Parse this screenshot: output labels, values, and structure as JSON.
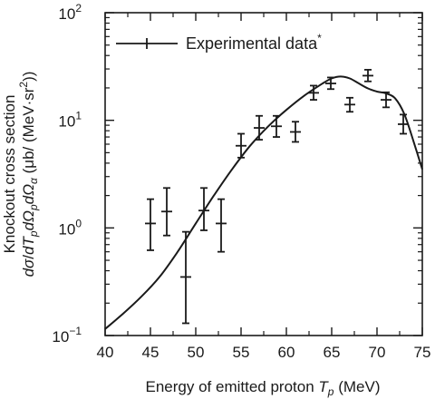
{
  "chart_data": {
    "type": "scatter",
    "title": "",
    "xlabel": "Energy of emitted proton T_p (MeV)",
    "xlabel_parts": {
      "main": "Energy of emitted proton ",
      "var": "T",
      "sub": "p",
      "unit": " (MeV)"
    },
    "ylabel_line1": "Knockout cross section",
    "ylabel_line2": "dσ/dT_p dΩ_p dΩ_α (μb/ (MeV·sr²))",
    "ylabel_line2_parts": {
      "d1": "d",
      "sigma": "σ",
      "slash": "/",
      "d2": "dT",
      "sub_p1": "p",
      "d3": "dΩ",
      "sub_p2": "p",
      "d4": "dΩ",
      "sub_a": "α",
      "unit_open": " (μb/ (MeV·sr",
      "sup2": "2",
      "unit_close": "))"
    },
    "x_range": [
      40,
      75
    ],
    "y_range": [
      0.1,
      100
    ],
    "y_scale": "log",
    "x_ticks": [
      40,
      45,
      50,
      55,
      60,
      65,
      70,
      75
    ],
    "y_ticks": [
      {
        "value": 0.1,
        "base": "10",
        "exp": "−1"
      },
      {
        "value": 1,
        "base": "10",
        "exp": "0"
      },
      {
        "value": 10,
        "base": "10",
        "exp": "1"
      },
      {
        "value": 100,
        "base": "10",
        "exp": "2"
      }
    ],
    "legend": {
      "label": "Experimental data",
      "sup": "*",
      "position": "top-left"
    },
    "series": [
      {
        "name": "Experimental data*",
        "kind": "errorbar",
        "points": [
          {
            "x": 45.0,
            "y": 1.1,
            "ylo": 0.62,
            "yhi": 1.85,
            "xerr": 0.6
          },
          {
            "x": 46.8,
            "y": 1.42,
            "ylo": 0.85,
            "yhi": 2.35,
            "xerr": 0.6
          },
          {
            "x": 48.9,
            "y": 0.35,
            "ylo": 0.13,
            "yhi": 0.92,
            "xerr": 0.6
          },
          {
            "x": 50.9,
            "y": 1.45,
            "ylo": 0.95,
            "yhi": 2.35,
            "xerr": 0.6
          },
          {
            "x": 52.8,
            "y": 1.1,
            "ylo": 0.6,
            "yhi": 1.85,
            "xerr": 0.6
          },
          {
            "x": 55.0,
            "y": 5.8,
            "ylo": 4.5,
            "yhi": 7.5,
            "xerr": 0.6
          },
          {
            "x": 57.0,
            "y": 8.5,
            "ylo": 6.6,
            "yhi": 11.0,
            "xerr": 0.6
          },
          {
            "x": 58.9,
            "y": 8.8,
            "ylo": 7.0,
            "yhi": 11.0,
            "xerr": 0.6
          },
          {
            "x": 61.0,
            "y": 7.8,
            "ylo": 6.3,
            "yhi": 9.7,
            "xerr": 0.6
          },
          {
            "x": 63.0,
            "y": 18.0,
            "ylo": 15.5,
            "yhi": 21.0,
            "xerr": 0.6
          },
          {
            "x": 64.9,
            "y": 22.0,
            "ylo": 19.5,
            "yhi": 25.0,
            "xerr": 0.6
          },
          {
            "x": 67.0,
            "y": 14.0,
            "ylo": 12.0,
            "yhi": 16.2,
            "xerr": 0.6
          },
          {
            "x": 69.0,
            "y": 26.0,
            "ylo": 23.0,
            "yhi": 29.5,
            "xerr": 0.6
          },
          {
            "x": 71.0,
            "y": 15.5,
            "ylo": 13.2,
            "yhi": 18.2,
            "xerr": 0.6
          },
          {
            "x": 72.9,
            "y": 9.2,
            "ylo": 7.5,
            "yhi": 11.3,
            "xerr": 0.6
          }
        ]
      },
      {
        "name": "",
        "kind": "line",
        "points": [
          {
            "x": 40,
            "y": 0.115
          },
          {
            "x": 42,
            "y": 0.16
          },
          {
            "x": 44,
            "y": 0.23
          },
          {
            "x": 46,
            "y": 0.35
          },
          {
            "x": 48,
            "y": 0.6
          },
          {
            "x": 50,
            "y": 1.1
          },
          {
            "x": 52,
            "y": 2.0
          },
          {
            "x": 54,
            "y": 3.5
          },
          {
            "x": 56,
            "y": 5.8
          },
          {
            "x": 58,
            "y": 8.8
          },
          {
            "x": 60,
            "y": 12.5
          },
          {
            "x": 62,
            "y": 17.0
          },
          {
            "x": 64,
            "y": 22.0
          },
          {
            "x": 65,
            "y": 24.5
          },
          {
            "x": 66,
            "y": 25.5
          },
          {
            "x": 67,
            "y": 24.5
          },
          {
            "x": 68,
            "y": 22.0
          },
          {
            "x": 69,
            "y": 19.8
          },
          {
            "x": 70,
            "y": 18.5
          },
          {
            "x": 71,
            "y": 17.8
          },
          {
            "x": 72,
            "y": 16.0
          },
          {
            "x": 73,
            "y": 11.5
          },
          {
            "x": 74,
            "y": 6.5
          },
          {
            "x": 75,
            "y": 3.5
          }
        ]
      }
    ],
    "colors": {
      "ink": "#1a1a1a",
      "background": "#ffffff"
    }
  }
}
